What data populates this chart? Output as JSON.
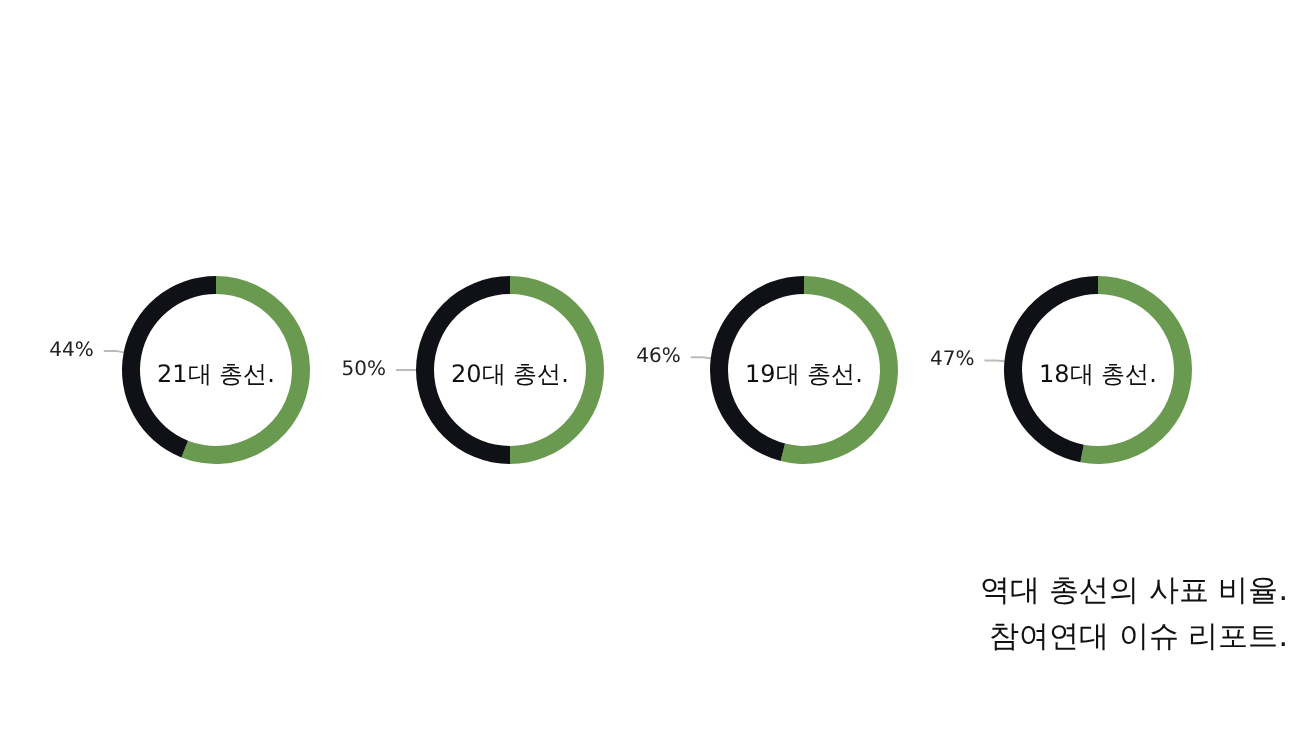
{
  "chart_data": [
    {
      "type": "donut",
      "title": "21대 총선.",
      "categories": [
        null,
        null
      ],
      "values": [
        56,
        44
      ],
      "colors": [
        "#6a9a4f",
        "#0f1116"
      ],
      "value_labels": [
        null,
        "44%"
      ]
    },
    {
      "type": "donut",
      "title": "20대 총선.",
      "categories": [
        null,
        null
      ],
      "values": [
        50,
        50
      ],
      "colors": [
        "#6a9a4f",
        "#0f1116"
      ],
      "value_labels": [
        null,
        "50%"
      ]
    },
    {
      "type": "donut",
      "title": "19대 총선.",
      "categories": [
        null,
        null
      ],
      "values": [
        54,
        46
      ],
      "colors": [
        "#6a9a4f",
        "#0f1116"
      ],
      "value_labels": [
        null,
        "46%"
      ]
    },
    {
      "type": "donut",
      "title": "18대 총선.",
      "categories": [
        null,
        null
      ],
      "values": [
        53,
        47
      ],
      "colors": [
        "#6a9a4f",
        "#0f1116"
      ],
      "value_labels": [
        null,
        "47%"
      ],
      "annotations": [
        "역대 총선의 사표 비율.",
        "참여연대 이슈 리포트."
      ]
    }
  ]
}
